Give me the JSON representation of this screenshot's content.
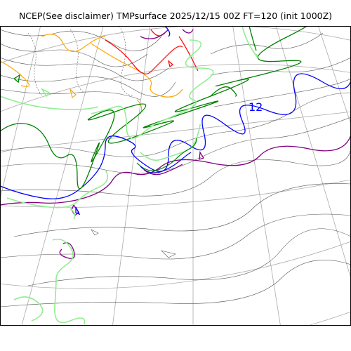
{
  "title": "NCEP(See disclaimer) TMPsurface 2025/12/15 00Z FT=120 (init 1000Z)",
  "contour_labels": [
    {
      "text": "12",
      "color": "#0000ff"
    }
  ],
  "colors": {
    "background": "#ffffff",
    "frame": "#000000",
    "graticule": "#aaaaaa",
    "coastline_thin": "#555555",
    "isotherm_purple": "#800080",
    "isotherm_blue": "#0000ff",
    "isotherm_darkgreen": "#008000",
    "isotherm_lightgreen": "#90ee90",
    "isotherm_orange": "#ffa500",
    "isotherm_red": "#ff0000"
  }
}
